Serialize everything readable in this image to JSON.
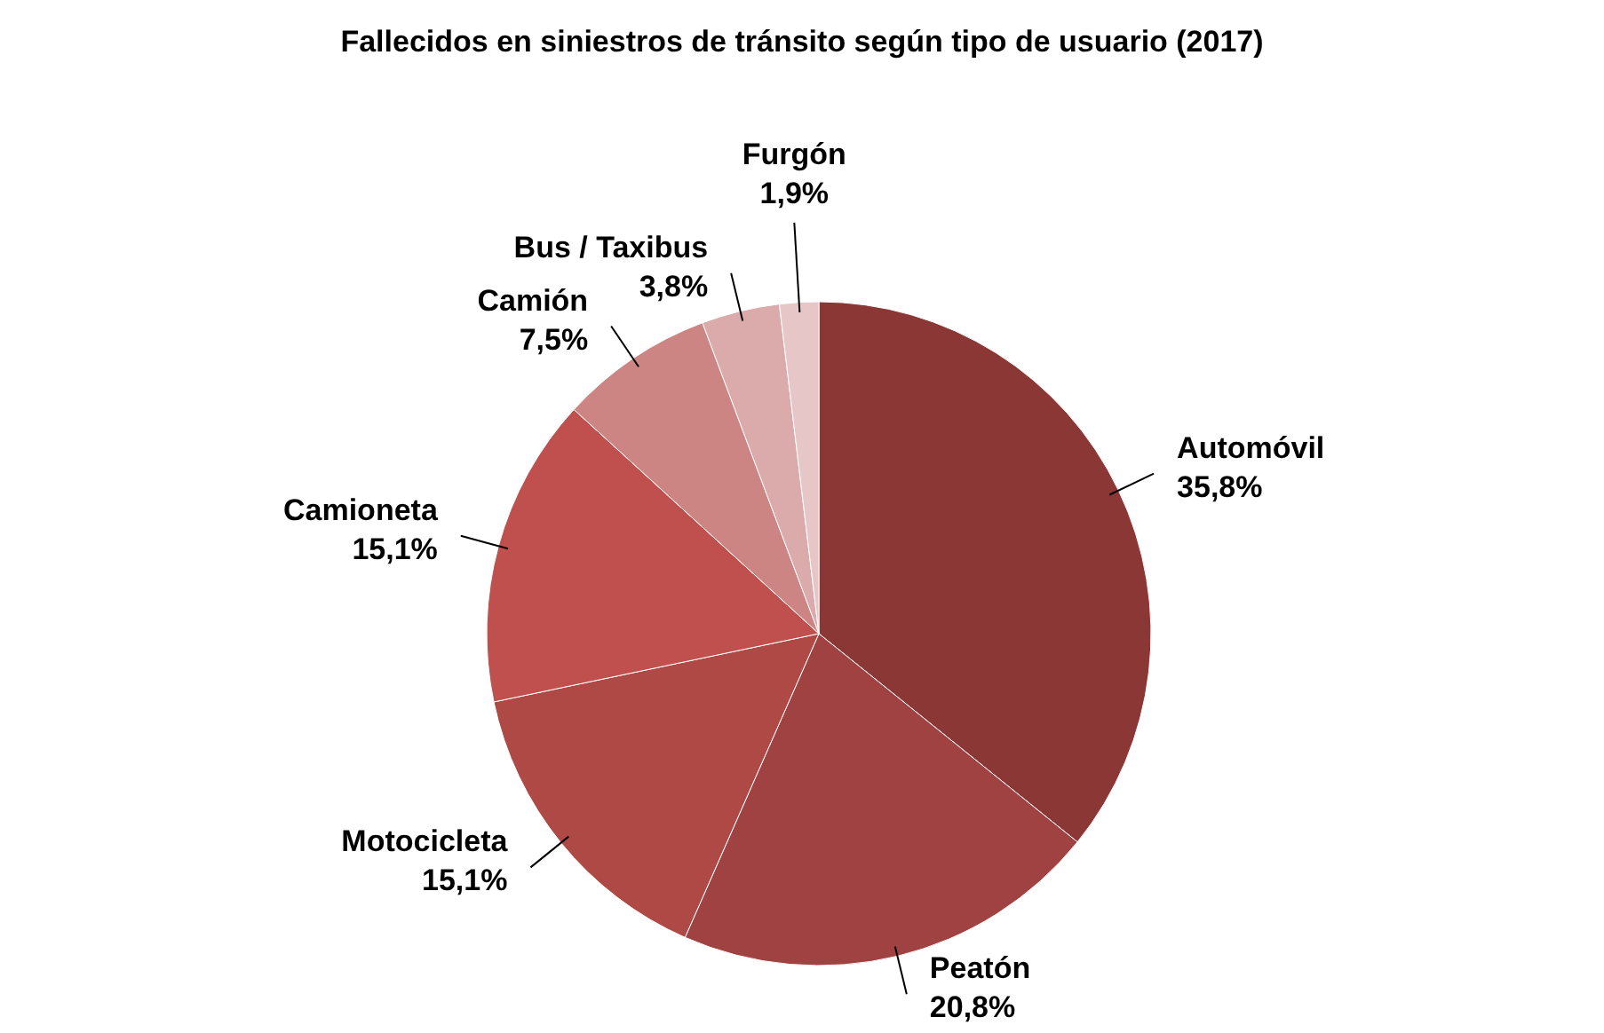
{
  "chart_data": {
    "type": "pie",
    "title": "Fallecidos  en siniestros de tránsito según tipo de usuario  (2017)",
    "categories": [
      "Automóvil",
      "Peatón",
      "Motocicleta",
      "Camioneta",
      "Camión",
      "Bus / Taxibus",
      "Furgón"
    ],
    "values": [
      35.8,
      20.8,
      15.1,
      15.1,
      7.5,
      3.8,
      1.9
    ],
    "value_labels": [
      "35,8%",
      "20,8%",
      "15,1%",
      "15,1%",
      "7,5%",
      "3,8%",
      "1,9%"
    ],
    "colors": [
      "#8a3736",
      "#a04241",
      "#ae4946",
      "#c0504d",
      "#cd8583",
      "#dbabab",
      "#e6c6c7"
    ],
    "legend": false
  }
}
